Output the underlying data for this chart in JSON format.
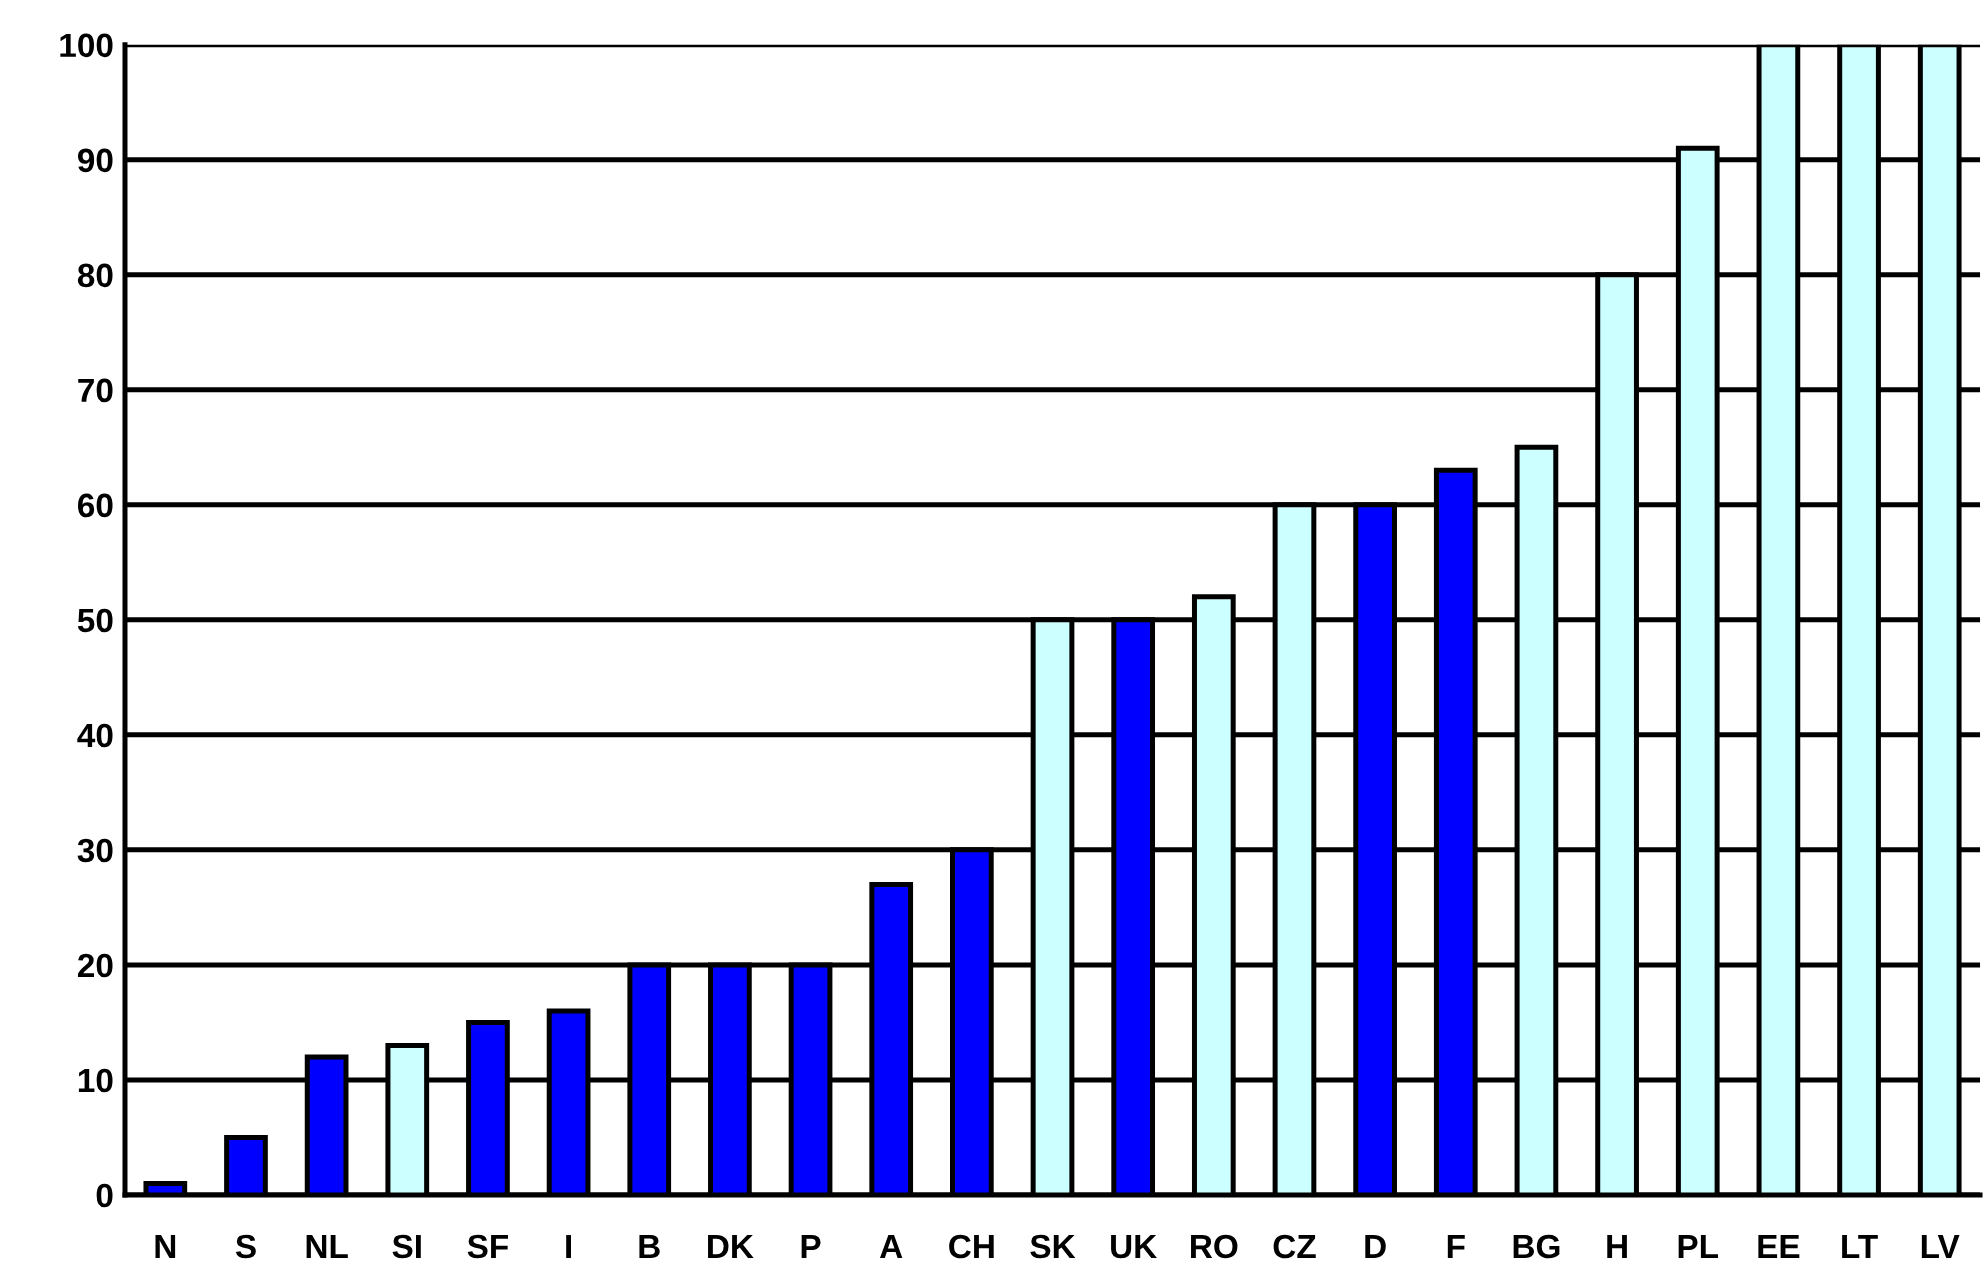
{
  "chart_data": {
    "type": "bar",
    "categories": [
      "N",
      "S",
      "NL",
      "SI",
      "SF",
      "I",
      "B",
      "DK",
      "P",
      "A",
      "CH",
      "SK",
      "UK",
      "RO",
      "CZ",
      "D",
      "F",
      "BG",
      "H",
      "PL",
      "EE",
      "LT",
      "LV"
    ],
    "values": [
      1,
      5,
      12,
      13,
      15,
      16,
      20,
      20,
      20,
      27,
      30,
      50,
      50,
      52,
      60,
      60,
      63,
      65,
      80,
      91,
      100,
      100,
      100
    ],
    "colors": [
      "#0000ff",
      "#0000ff",
      "#0000ff",
      "#ccffff",
      "#0000ff",
      "#0000ff",
      "#0000ff",
      "#0000ff",
      "#0000ff",
      "#0000ff",
      "#0000ff",
      "#ccffff",
      "#0000ff",
      "#ccffff",
      "#ccffff",
      "#0000ff",
      "#0000ff",
      "#ccffff",
      "#ccffff",
      "#ccffff",
      "#ccffff",
      "#ccffff",
      "#ccffff"
    ],
    "ylim": [
      0,
      100
    ],
    "yticks": [
      0,
      10,
      20,
      30,
      40,
      50,
      60,
      70,
      80,
      90,
      100
    ],
    "grid": "y"
  }
}
